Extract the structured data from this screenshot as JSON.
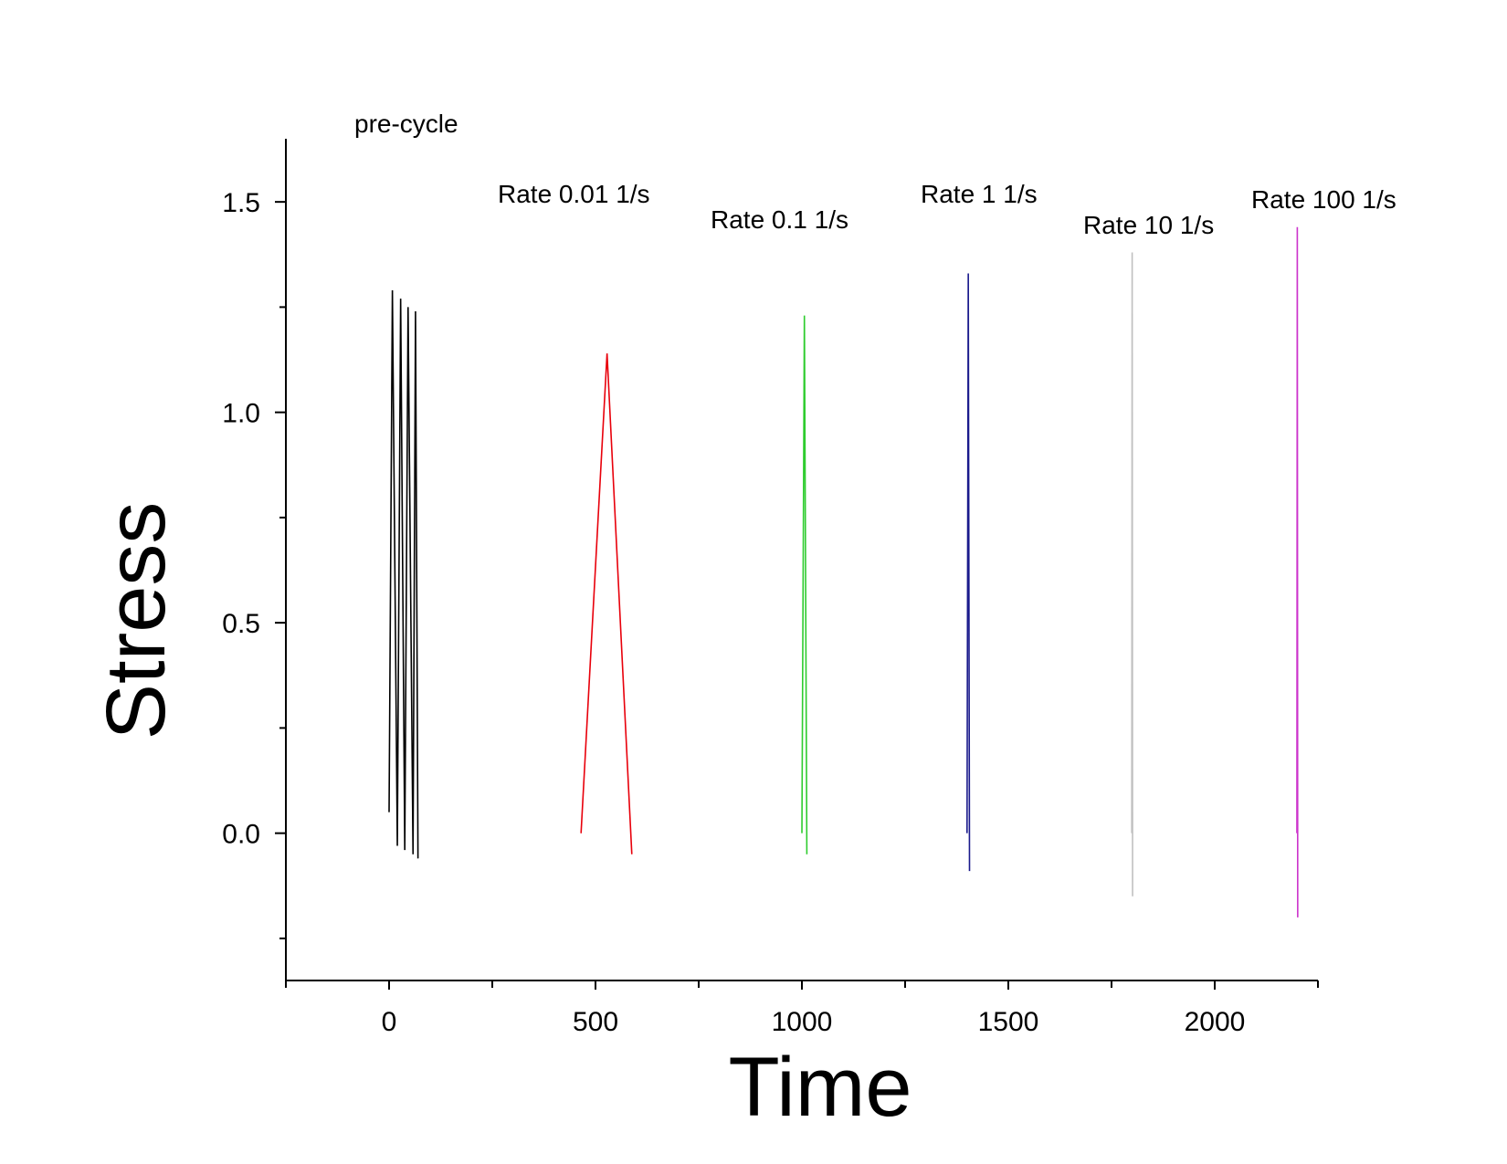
{
  "chart_data": {
    "type": "line",
    "title": "",
    "xlabel": "Time",
    "ylabel": "Stress",
    "xlim": [
      -250,
      2250
    ],
    "ylim": [
      -0.35,
      1.65
    ],
    "x_ticks": [
      0,
      500,
      1000,
      1500,
      2000
    ],
    "x_tick_labels": [
      "0",
      "500",
      "1000",
      "1500",
      "2000"
    ],
    "x_minor_ticks": [
      -250,
      250,
      750,
      1250,
      1750,
      2250
    ],
    "y_ticks": [
      0.0,
      0.5,
      1.0,
      1.5
    ],
    "y_tick_labels": [
      "0.0",
      "0.5",
      "1.0",
      "1.5"
    ],
    "y_minor_ticks": [
      -0.25,
      0.25,
      0.75,
      1.25
    ],
    "grid": false,
    "legend": "none",
    "series": [
      {
        "color": "#000000",
        "x": [
          0,
          8,
          20,
          28,
          38,
          46,
          58,
          64,
          70
        ],
        "y": [
          0.05,
          1.29,
          -0.03,
          1.27,
          -0.04,
          1.25,
          -0.05,
          1.24,
          -0.06
        ]
      },
      {
        "color": "#e8000b",
        "x": [
          465,
          528,
          588
        ],
        "y": [
          0.0,
          1.14,
          -0.05
        ]
      },
      {
        "color": "#2ecc2e",
        "x": [
          1000,
          1006,
          1012
        ],
        "y": [
          0.0,
          1.23,
          -0.05
        ]
      },
      {
        "color": "#1a1a8c",
        "x": [
          1400,
          1403,
          1406
        ],
        "y": [
          0.0,
          1.33,
          -0.09
        ]
      },
      {
        "color": "#c0c0c0",
        "x": [
          1799,
          1800,
          1801
        ],
        "y": [
          0.0,
          1.38,
          -0.15
        ]
      },
      {
        "color": "#cc33cc",
        "x": [
          2199,
          2200,
          2201
        ],
        "y": [
          0.0,
          1.44,
          -0.2
        ]
      }
    ],
    "annotations": [
      {
        "text": "pre-cycle"
      },
      {
        "text": "Rate 0.01 1/s"
      },
      {
        "text": "Rate 0.1 1/s"
      },
      {
        "text": "Rate 1 1/s"
      },
      {
        "text": "Rate 10 1/s"
      },
      {
        "text": "Rate 100 1/s"
      }
    ]
  }
}
